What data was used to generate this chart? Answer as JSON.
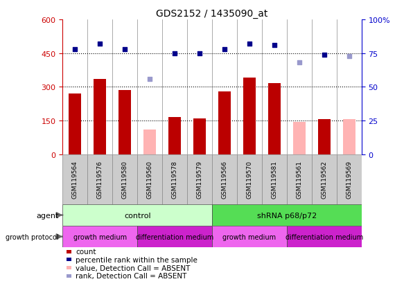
{
  "title": "GDS2152 / 1435090_at",
  "samples": [
    "GSM119564",
    "GSM119576",
    "GSM119580",
    "GSM119560",
    "GSM119578",
    "GSM119579",
    "GSM119566",
    "GSM119570",
    "GSM119581",
    "GSM119561",
    "GSM119562",
    "GSM119569"
  ],
  "count_values": [
    270,
    335,
    285,
    null,
    165,
    160,
    280,
    340,
    315,
    null,
    155,
    null
  ],
  "count_absent": [
    null,
    null,
    null,
    110,
    null,
    null,
    null,
    null,
    null,
    145,
    null,
    155
  ],
  "percentile_values": [
    78,
    82,
    78,
    null,
    75,
    75,
    78,
    82,
    81,
    null,
    74,
    null
  ],
  "percentile_absent": [
    null,
    null,
    null,
    56,
    null,
    null,
    null,
    null,
    null,
    68,
    null,
    73
  ],
  "left_ylim": [
    0,
    600
  ],
  "left_yticks": [
    0,
    150,
    300,
    450,
    600
  ],
  "right_ylim": [
    0,
    100
  ],
  "right_yticks": [
    0,
    25,
    50,
    75,
    100
  ],
  "left_ylabel_color": "#cc0000",
  "right_ylabel_color": "#0000cc",
  "bar_color": "#bb0000",
  "bar_absent_color": "#ffb3b3",
  "dot_color": "#00008b",
  "dot_absent_color": "#9999cc",
  "agent_groups": [
    {
      "label": "control",
      "start": 0,
      "end": 6,
      "color": "#ccffcc"
    },
    {
      "label": "shRNA p68/p72",
      "start": 6,
      "end": 12,
      "color": "#55dd55"
    }
  ],
  "growth_groups": [
    {
      "label": "growth medium",
      "start": 0,
      "end": 3,
      "color": "#ee66ee"
    },
    {
      "label": "differentiation medium",
      "start": 3,
      "end": 6,
      "color": "#cc22cc"
    },
    {
      "label": "growth medium",
      "start": 6,
      "end": 9,
      "color": "#ee66ee"
    },
    {
      "label": "differentiation medium",
      "start": 9,
      "end": 12,
      "color": "#cc22cc"
    }
  ],
  "legend_items": [
    {
      "label": "count",
      "color": "#bb0000"
    },
    {
      "label": "percentile rank within the sample",
      "color": "#00008b"
    },
    {
      "label": "value, Detection Call = ABSENT",
      "color": "#ffb3b3"
    },
    {
      "label": "rank, Detection Call = ABSENT",
      "color": "#9999cc"
    }
  ],
  "figsize": [
    5.83,
    4.14
  ],
  "dpi": 100
}
